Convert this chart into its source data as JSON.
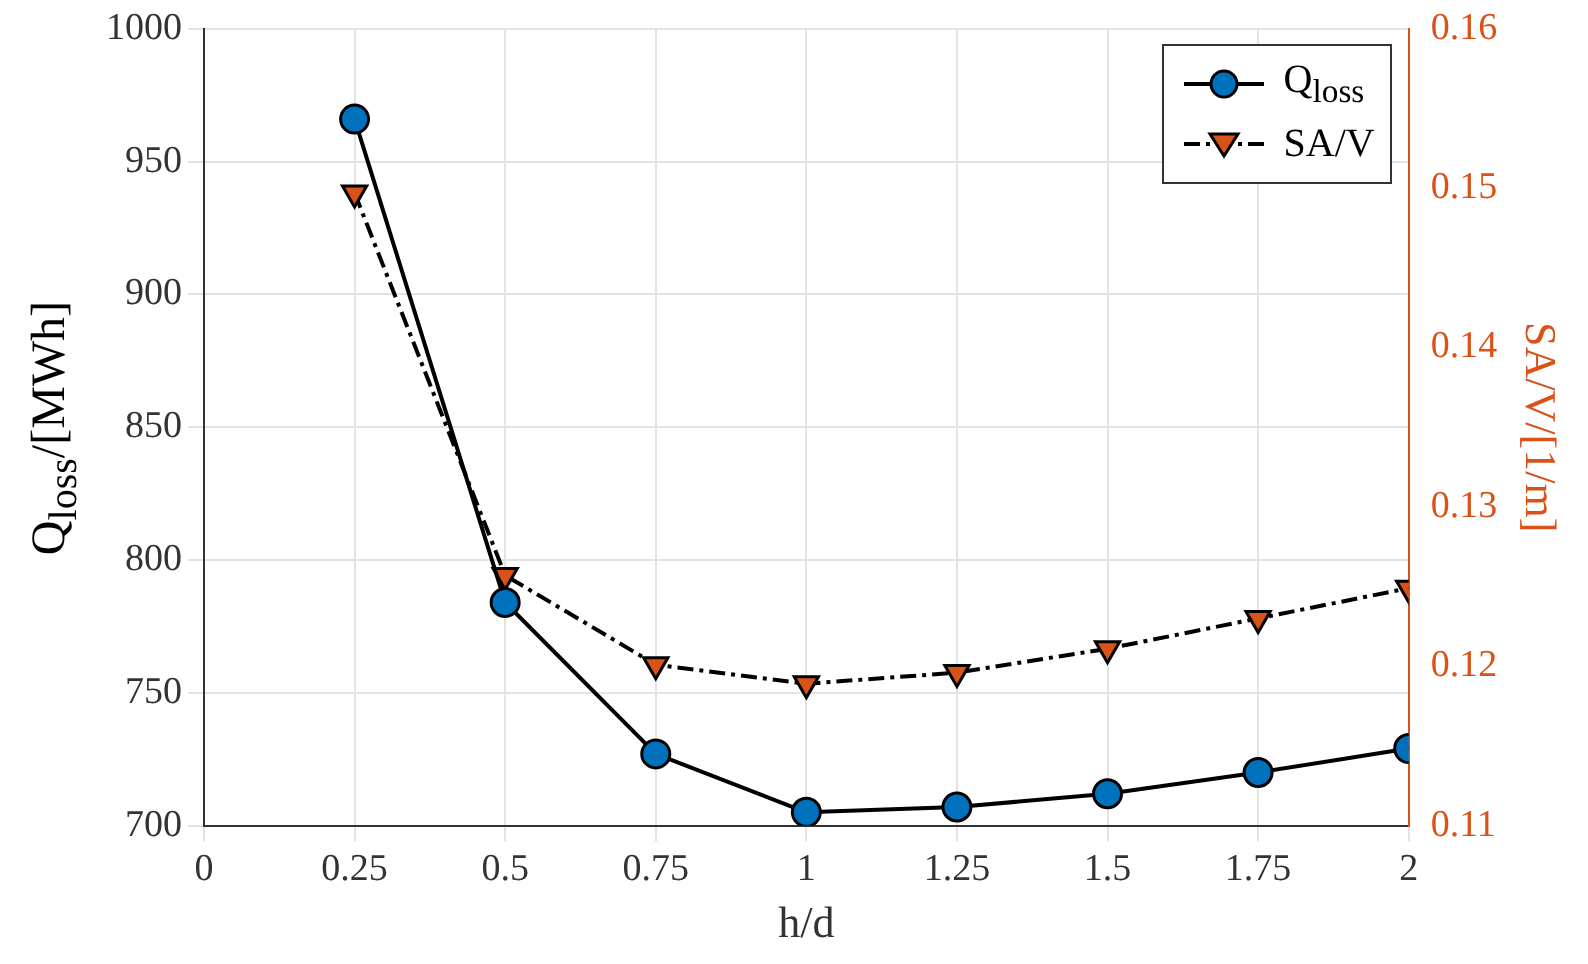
{
  "chart_data": {
    "type": "line",
    "xlabel": "h/d",
    "ylabel": "Q$_{loss}$/[MWh]",
    "y2label": "SA/V/[1/m]",
    "x": [
      0.25,
      0.5,
      0.75,
      1,
      1.25,
      1.5,
      1.75,
      2
    ],
    "series": [
      {
        "name": "Q$_{loss}$",
        "color": "#0072bd",
        "marker": "circle",
        "line_style": "solid",
        "values": [
          966,
          784,
          727,
          705,
          707,
          712,
          720,
          729
        ]
      },
      {
        "name": "SA/V",
        "color": "#d95319",
        "marker": "triangle",
        "line_style": "dashed",
        "axis": "y2",
        "values": [
          0.1497,
          0.1257,
          0.1201,
          0.1189,
          0.1196,
          0.1211,
          0.123,
          0.1249
        ]
      }
    ],
    "xlim": [
      0,
      2
    ],
    "xticks": [
      0,
      {
        "value": 0.25,
        "label": "0.25"
      },
      {
        "value": 0.5,
        "label": "0.5"
      },
      {
        "value": 0.75,
        "label": "0.75"
      },
      1,
      {
        "value": 1.25,
        "label": "1.25"
      },
      {
        "value": 1.5,
        "label": "1.5"
      },
      {
        "value": 1.75,
        "label": "1.75"
      },
      2
    ],
    "ylim": [
      700,
      1000
    ],
    "yticks": [
      700,
      750,
      800,
      850,
      900,
      950,
      1000
    ],
    "y2lim": [
      0.11,
      0.16
    ],
    "y2ticks": [
      {
        "value": 0.11,
        "label": "0.11"
      },
      {
        "value": 0.12,
        "label": "0.12"
      },
      {
        "value": 0.13,
        "label": "0.13"
      },
      {
        "value": 0.14,
        "label": "0.14"
      },
      {
        "value": 0.15,
        "label": "0.15"
      },
      {
        "value": 0.16,
        "label": "0.16"
      }
    ],
    "grid": true,
    "legend": "top right"
  }
}
